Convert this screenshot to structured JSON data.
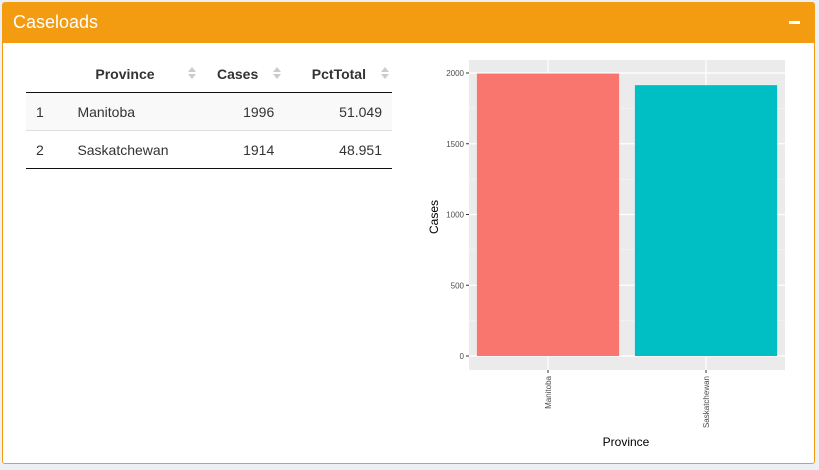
{
  "box": {
    "title": "Caseloads",
    "colors": {
      "header": "#f39c12",
      "border": "#f39c12"
    }
  },
  "table": {
    "headers": [
      "",
      "Province",
      "Cases",
      "PctTotal"
    ],
    "rows": [
      {
        "idx": "1",
        "province": "Manitoba",
        "cases": "1996",
        "pct": "51.049"
      },
      {
        "idx": "2",
        "province": "Saskatchewan",
        "cases": "1914",
        "pct": "48.951"
      }
    ]
  },
  "chart_data": {
    "type": "bar",
    "categories": [
      "Manitoba",
      "Saskatchewan"
    ],
    "values": [
      1996,
      1914
    ],
    "colors": [
      "#f8766d",
      "#00bfc4"
    ],
    "xlabel": "Province",
    "ylabel": "Cases",
    "ylim": [
      0,
      2000
    ],
    "yticks": [
      0,
      500,
      1000,
      1500,
      2000
    ],
    "grid": true,
    "panel_background": "#ebebeb"
  }
}
